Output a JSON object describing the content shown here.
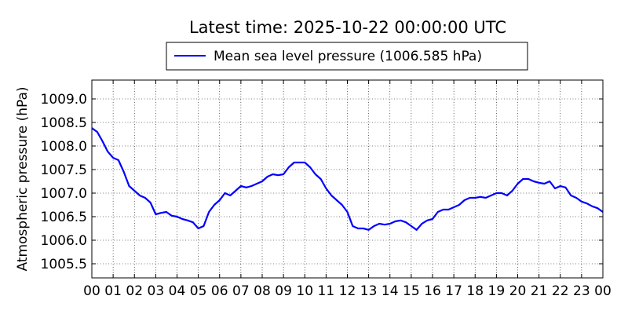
{
  "chart_data": {
    "type": "line",
    "title": "Latest time: 2025-10-22 00:00:00 UTC",
    "ylabel": "Atmospheric pressure (hPa)",
    "xlabel": "",
    "xlim": [
      0,
      24
    ],
    "ylim": [
      1005.2,
      1009.4
    ],
    "grid": true,
    "legend_position": "top-center",
    "x_ticks": [
      0,
      1,
      2,
      3,
      4,
      5,
      6,
      7,
      8,
      9,
      10,
      11,
      12,
      13,
      14,
      15,
      16,
      17,
      18,
      19,
      20,
      21,
      22,
      23,
      24
    ],
    "x_tick_labels": [
      "00",
      "01",
      "02",
      "03",
      "04",
      "05",
      "06",
      "07",
      "08",
      "09",
      "10",
      "11",
      "12",
      "13",
      "14",
      "15",
      "16",
      "17",
      "18",
      "19",
      "20",
      "21",
      "22",
      "23",
      "00"
    ],
    "y_ticks": [
      1005.5,
      1006.0,
      1006.5,
      1007.0,
      1007.5,
      1008.0,
      1008.5,
      1009.0
    ],
    "y_tick_labels": [
      "1005.5",
      "1006.0",
      "1006.5",
      "1007.0",
      "1007.5",
      "1008.0",
      "1008.5",
      "1009.0"
    ],
    "series": [
      {
        "name": "Mean sea level pressure (1006.585 hPa)",
        "color": "#0000ff",
        "x": [
          0,
          0.25,
          0.5,
          0.75,
          1.0,
          1.25,
          1.5,
          1.75,
          2.0,
          2.25,
          2.5,
          2.75,
          3.0,
          3.25,
          3.5,
          3.75,
          4.0,
          4.25,
          4.5,
          4.75,
          5.0,
          5.25,
          5.5,
          5.75,
          6.0,
          6.25,
          6.5,
          6.75,
          7.0,
          7.25,
          7.5,
          7.75,
          8.0,
          8.25,
          8.5,
          8.75,
          9.0,
          9.25,
          9.5,
          9.75,
          10.0,
          10.25,
          10.5,
          10.75,
          11.0,
          11.25,
          11.5,
          11.75,
          12.0,
          12.25,
          12.5,
          12.75,
          13.0,
          13.25,
          13.5,
          13.75,
          14.0,
          14.25,
          14.5,
          14.75,
          15.0,
          15.25,
          15.5,
          15.75,
          16.0,
          16.25,
          16.5,
          16.75,
          17.0,
          17.25,
          17.5,
          17.75,
          18.0,
          18.25,
          18.5,
          18.75,
          19.0,
          19.25,
          19.5,
          19.75,
          20.0,
          20.25,
          20.5,
          20.75,
          21.0,
          21.25,
          21.5,
          21.75,
          22.0,
          22.25,
          22.5,
          22.75,
          23.0,
          23.25,
          23.5,
          23.75,
          24.0
        ],
        "values": [
          1008.38,
          1008.3,
          1008.1,
          1007.88,
          1007.75,
          1007.7,
          1007.45,
          1007.15,
          1007.05,
          1006.95,
          1006.9,
          1006.8,
          1006.55,
          1006.58,
          1006.6,
          1006.52,
          1006.5,
          1006.45,
          1006.42,
          1006.38,
          1006.25,
          1006.3,
          1006.6,
          1006.75,
          1006.85,
          1007.0,
          1006.95,
          1007.05,
          1007.15,
          1007.12,
          1007.15,
          1007.2,
          1007.25,
          1007.35,
          1007.4,
          1007.38,
          1007.4,
          1007.55,
          1007.65,
          1007.65,
          1007.65,
          1007.55,
          1007.4,
          1007.3,
          1007.1,
          1006.95,
          1006.85,
          1006.75,
          1006.6,
          1006.3,
          1006.25,
          1006.25,
          1006.22,
          1006.3,
          1006.35,
          1006.33,
          1006.35,
          1006.4,
          1006.42,
          1006.38,
          1006.3,
          1006.22,
          1006.35,
          1006.42,
          1006.45,
          1006.6,
          1006.65,
          1006.65,
          1006.7,
          1006.75,
          1006.85,
          1006.9,
          1006.9,
          1006.92,
          1006.9,
          1006.95,
          1007.0,
          1007.0,
          1006.95,
          1007.05,
          1007.2,
          1007.3,
          1007.3,
          1007.25,
          1007.22,
          1007.2,
          1007.25,
          1007.1,
          1007.15,
          1007.12,
          1006.95,
          1006.9,
          1006.82,
          1006.78,
          1006.72,
          1006.68,
          1006.6
        ]
      }
    ]
  }
}
